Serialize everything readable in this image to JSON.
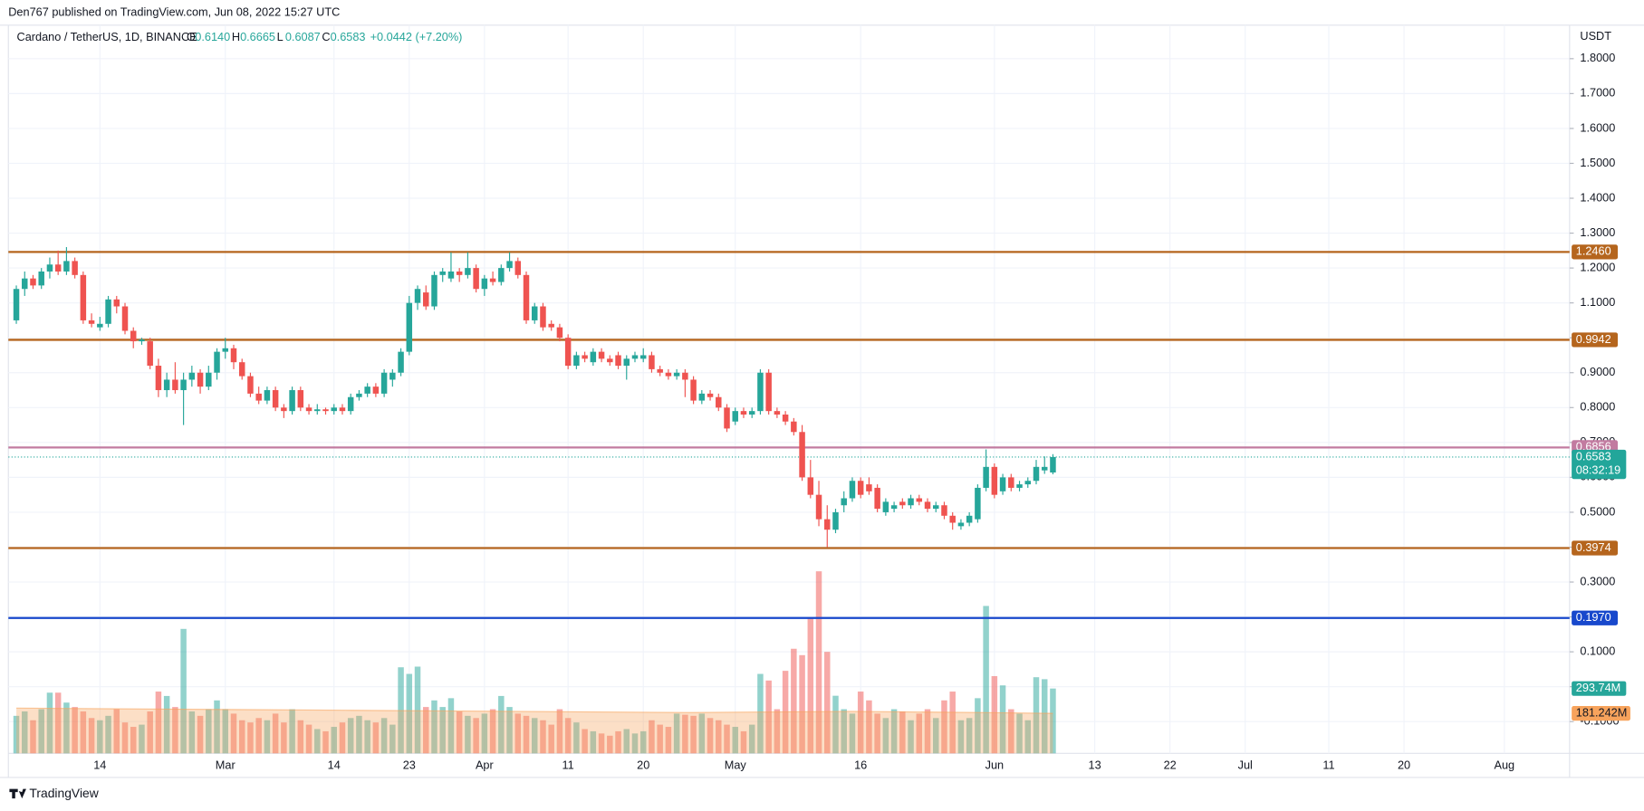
{
  "chart_data": {
    "type": "candlestick",
    "publisher": "Den767 published on TradingView.com, Jun 08, 2022 15:27 UTC",
    "title": "Cardano / TetherUS, 1D, BINANCE",
    "ohlc": [
      {
        "key": "O",
        "value": 0.614,
        "label": "0.6140"
      },
      {
        "key": "H",
        "value": 0.6665,
        "label": "0.6665"
      },
      {
        "key": "L",
        "value": 0.6087,
        "label": "0.6087"
      },
      {
        "key": "C",
        "value": 0.6583,
        "label": "0.6583"
      }
    ],
    "change_label": "+0.0442 (+7.20%)",
    "axis_unit": "USDT",
    "footer": "TradingView",
    "up_color": "#26a69a",
    "down_color": "#ef5350",
    "xlim": [
      -0.95,
      185.8
    ],
    "xticks": [
      {
        "value": 10,
        "label": "14"
      },
      {
        "value": 25,
        "label": "Mar"
      },
      {
        "value": 38,
        "label": "14"
      },
      {
        "value": 47,
        "label": "23"
      },
      {
        "value": 56,
        "label": "Apr"
      },
      {
        "value": 66,
        "label": "11"
      },
      {
        "value": 75,
        "label": "20"
      },
      {
        "value": 86,
        "label": "May"
      },
      {
        "value": 101,
        "label": "16"
      },
      {
        "value": 117,
        "label": "Jun"
      },
      {
        "value": 129,
        "label": "13"
      },
      {
        "value": 138,
        "label": "22"
      },
      {
        "value": 147,
        "label": "Jul"
      },
      {
        "value": 157,
        "label": "11"
      },
      {
        "value": 166,
        "label": "20"
      },
      {
        "value": 178,
        "label": "Aug"
      }
    ],
    "ylim": [
      -0.191,
      1.896
    ],
    "yticks": [
      {
        "value": 1.8,
        "label": "1.8000"
      },
      {
        "value": 1.7,
        "label": "1.7000"
      },
      {
        "value": 1.6,
        "label": "1.6000"
      },
      {
        "value": 1.5,
        "label": "1.5000"
      },
      {
        "value": 1.4,
        "label": "1.4000"
      },
      {
        "value": 1.3,
        "label": "1.3000"
      },
      {
        "value": 1.2,
        "label": "1.2000"
      },
      {
        "value": 1.1,
        "label": "1.1000"
      },
      {
        "value": 1.0,
        "label": "1.0000"
      },
      {
        "value": 0.9,
        "label": "0.9000"
      },
      {
        "value": 0.8,
        "label": "0.8000"
      },
      {
        "value": 0.7,
        "label": "0.7000"
      },
      {
        "value": 0.6,
        "label": "0.6000"
      },
      {
        "value": 0.5,
        "label": "0.5000"
      },
      {
        "value": 0.4,
        "label": "0.4000"
      },
      {
        "value": 0.3,
        "label": "0.3000"
      },
      {
        "value": 0.2,
        "label": "0.2000"
      },
      {
        "value": 0.1,
        "label": "0.1000"
      },
      {
        "value": 0,
        "label": "0.0000"
      },
      {
        "value": -0.1,
        "label": "-0.1000"
      }
    ],
    "grid": true,
    "candles": [
      [
        1.05,
        1.15,
        1.04,
        1.14
      ],
      [
        1.14,
        1.19,
        1.12,
        1.17
      ],
      [
        1.17,
        1.18,
        1.14,
        1.15
      ],
      [
        1.15,
        1.2,
        1.14,
        1.19
      ],
      [
        1.19,
        1.23,
        1.17,
        1.21
      ],
      [
        1.21,
        1.25,
        1.18,
        1.19
      ],
      [
        1.19,
        1.26,
        1.18,
        1.22
      ],
      [
        1.22,
        1.23,
        1.17,
        1.18
      ],
      [
        1.18,
        1.19,
        1.04,
        1.05
      ],
      [
        1.05,
        1.07,
        1.03,
        1.04
      ],
      [
        1.03,
        1.06,
        1.02,
        1.04
      ],
      [
        1.04,
        1.12,
        1.03,
        1.11
      ],
      [
        1.11,
        1.12,
        1.07,
        1.09
      ],
      [
        1.09,
        1.1,
        1.01,
        1.02
      ],
      [
        1.02,
        1.03,
        0.97,
        0.99
      ],
      [
        0.99,
        1.0,
        0.98,
        0.995
      ],
      [
        0.99,
        1.0,
        0.91,
        0.92
      ],
      [
        0.92,
        0.94,
        0.83,
        0.85
      ],
      [
        0.85,
        0.9,
        0.83,
        0.88
      ],
      [
        0.88,
        0.93,
        0.84,
        0.85
      ],
      [
        0.85,
        0.9,
        0.75,
        0.88
      ],
      [
        0.88,
        0.92,
        0.86,
        0.9
      ],
      [
        0.9,
        0.91,
        0.84,
        0.86
      ],
      [
        0.86,
        0.92,
        0.85,
        0.9
      ],
      [
        0.9,
        0.97,
        0.88,
        0.96
      ],
      [
        0.96,
        1.0,
        0.94,
        0.97
      ],
      [
        0.97,
        0.98,
        0.91,
        0.93
      ],
      [
        0.93,
        0.94,
        0.88,
        0.89
      ],
      [
        0.89,
        0.9,
        0.83,
        0.84
      ],
      [
        0.84,
        0.86,
        0.81,
        0.82
      ],
      [
        0.82,
        0.86,
        0.81,
        0.85
      ],
      [
        0.85,
        0.86,
        0.79,
        0.8
      ],
      [
        0.8,
        0.81,
        0.77,
        0.79
      ],
      [
        0.79,
        0.86,
        0.78,
        0.85
      ],
      [
        0.85,
        0.86,
        0.79,
        0.8
      ],
      [
        0.8,
        0.81,
        0.78,
        0.79
      ],
      [
        0.79,
        0.81,
        0.78,
        0.795
      ],
      [
        0.795,
        0.8,
        0.78,
        0.79
      ],
      [
        0.79,
        0.81,
        0.78,
        0.8
      ],
      [
        0.8,
        0.81,
        0.78,
        0.79
      ],
      [
        0.79,
        0.84,
        0.78,
        0.83
      ],
      [
        0.83,
        0.85,
        0.82,
        0.84
      ],
      [
        0.84,
        0.87,
        0.83,
        0.86
      ],
      [
        0.86,
        0.87,
        0.83,
        0.84
      ],
      [
        0.84,
        0.91,
        0.83,
        0.9
      ],
      [
        0.88,
        0.91,
        0.86,
        0.9
      ],
      [
        0.9,
        0.97,
        0.89,
        0.96
      ],
      [
        0.96,
        1.12,
        0.95,
        1.1
      ],
      [
        1.1,
        1.15,
        1.08,
        1.14
      ],
      [
        1.13,
        1.15,
        1.08,
        1.09
      ],
      [
        1.09,
        1.19,
        1.08,
        1.18
      ],
      [
        1.18,
        1.2,
        1.16,
        1.19
      ],
      [
        1.17,
        1.245,
        1.16,
        1.19
      ],
      [
        1.19,
        1.2,
        1.16,
        1.18
      ],
      [
        1.18,
        1.245,
        1.17,
        1.2
      ],
      [
        1.2,
        1.21,
        1.13,
        1.14
      ],
      [
        1.14,
        1.18,
        1.12,
        1.17
      ],
      [
        1.17,
        1.19,
        1.15,
        1.16
      ],
      [
        1.16,
        1.21,
        1.15,
        1.2
      ],
      [
        1.2,
        1.245,
        1.19,
        1.22
      ],
      [
        1.22,
        1.23,
        1.17,
        1.18
      ],
      [
        1.18,
        1.19,
        1.04,
        1.05
      ],
      [
        1.05,
        1.1,
        1.04,
        1.09
      ],
      [
        1.09,
        1.1,
        1.02,
        1.03
      ],
      [
        1.04,
        1.05,
        1.02,
        1.03
      ],
      [
        1.03,
        1.04,
        0.99,
        1.0
      ],
      [
        1.0,
        1.01,
        0.91,
        0.92
      ],
      [
        0.92,
        0.96,
        0.91,
        0.95
      ],
      [
        0.95,
        0.96,
        0.93,
        0.94
      ],
      [
        0.93,
        0.97,
        0.92,
        0.96
      ],
      [
        0.96,
        0.97,
        0.93,
        0.94
      ],
      [
        0.94,
        0.95,
        0.92,
        0.93
      ],
      [
        0.95,
        0.96,
        0.91,
        0.92
      ],
      [
        0.92,
        0.95,
        0.88,
        0.94
      ],
      [
        0.94,
        0.96,
        0.93,
        0.95
      ],
      [
        0.94,
        0.97,
        0.93,
        0.95
      ],
      [
        0.95,
        0.96,
        0.9,
        0.91
      ],
      [
        0.91,
        0.92,
        0.89,
        0.9
      ],
      [
        0.9,
        0.91,
        0.88,
        0.89
      ],
      [
        0.89,
        0.91,
        0.88,
        0.9
      ],
      [
        0.9,
        0.91,
        0.83,
        0.88
      ],
      [
        0.88,
        0.89,
        0.81,
        0.82
      ],
      [
        0.82,
        0.85,
        0.81,
        0.84
      ],
      [
        0.84,
        0.85,
        0.82,
        0.83
      ],
      [
        0.83,
        0.84,
        0.79,
        0.8
      ],
      [
        0.8,
        0.81,
        0.73,
        0.74
      ],
      [
        0.76,
        0.8,
        0.75,
        0.79
      ],
      [
        0.79,
        0.8,
        0.77,
        0.78
      ],
      [
        0.78,
        0.8,
        0.77,
        0.79
      ],
      [
        0.79,
        0.91,
        0.78,
        0.9
      ],
      [
        0.9,
        0.91,
        0.78,
        0.79
      ],
      [
        0.79,
        0.8,
        0.77,
        0.78
      ],
      [
        0.78,
        0.79,
        0.75,
        0.76
      ],
      [
        0.76,
        0.77,
        0.72,
        0.73
      ],
      [
        0.73,
        0.75,
        0.59,
        0.6
      ],
      [
        0.6,
        0.65,
        0.54,
        0.55
      ],
      [
        0.55,
        0.59,
        0.46,
        0.48
      ],
      [
        0.48,
        0.52,
        0.4,
        0.45
      ],
      [
        0.45,
        0.51,
        0.44,
        0.5
      ],
      [
        0.52,
        0.56,
        0.5,
        0.54
      ],
      [
        0.54,
        0.6,
        0.53,
        0.59
      ],
      [
        0.59,
        0.6,
        0.54,
        0.55
      ],
      [
        0.58,
        0.6,
        0.55,
        0.56
      ],
      [
        0.57,
        0.58,
        0.5,
        0.51
      ],
      [
        0.5,
        0.54,
        0.49,
        0.53
      ],
      [
        0.51,
        0.53,
        0.5,
        0.52
      ],
      [
        0.53,
        0.54,
        0.51,
        0.52
      ],
      [
        0.52,
        0.55,
        0.51,
        0.54
      ],
      [
        0.54,
        0.55,
        0.52,
        0.53
      ],
      [
        0.53,
        0.54,
        0.5,
        0.51
      ],
      [
        0.51,
        0.53,
        0.5,
        0.52
      ],
      [
        0.52,
        0.53,
        0.48,
        0.49
      ],
      [
        0.49,
        0.5,
        0.45,
        0.47
      ],
      [
        0.46,
        0.48,
        0.45,
        0.47
      ],
      [
        0.47,
        0.5,
        0.46,
        0.49
      ],
      [
        0.48,
        0.58,
        0.47,
        0.57
      ],
      [
        0.57,
        0.68,
        0.56,
        0.63
      ],
      [
        0.63,
        0.64,
        0.54,
        0.55
      ],
      [
        0.56,
        0.61,
        0.55,
        0.6
      ],
      [
        0.6,
        0.61,
        0.56,
        0.57
      ],
      [
        0.57,
        0.59,
        0.56,
        0.58
      ],
      [
        0.58,
        0.6,
        0.57,
        0.59
      ],
      [
        0.59,
        0.65,
        0.58,
        0.63
      ],
      [
        0.62,
        0.66,
        0.61,
        0.63
      ],
      [
        0.614,
        0.6665,
        0.6087,
        0.6583
      ]
    ],
    "volume": [
      170,
      190,
      150,
      200,
      275,
      275,
      230,
      210,
      190,
      160,
      150,
      170,
      200,
      140,
      120,
      130,
      190,
      280,
      260,
      210,
      564,
      190,
      170,
      200,
      240,
      200,
      180,
      150,
      140,
      160,
      150,
      180,
      140,
      200,
      150,
      130,
      110,
      100,
      120,
      140,
      160,
      170,
      150,
      140,
      160,
      130,
      390,
      360,
      393,
      210,
      240,
      210,
      250,
      190,
      170,
      160,
      180,
      200,
      260,
      210,
      180,
      170,
      160,
      150,
      130,
      200,
      160,
      140,
      110,
      100,
      90,
      80,
      100,
      110,
      90,
      100,
      150,
      130,
      120,
      180,
      175,
      170,
      180,
      160,
      150,
      130,
      120,
      100,
      130,
      360,
      330,
      200,
      374,
      474,
      445,
      616,
      825,
      460,
      261,
      200,
      180,
      280,
      240,
      180,
      160,
      200,
      190,
      150,
      180,
      200,
      160,
      240,
      280,
      150,
      160,
      250,
      668,
      350,
      308,
      200,
      180,
      150,
      345,
      336,
      293.74
    ],
    "volume_label": "293.74M",
    "vlim": [
      0,
      3300
    ],
    "ma_x": [
      0,
      20,
      40,
      60,
      80,
      100,
      115,
      124
    ],
    "ma": [
      205,
      200,
      195,
      190,
      185,
      190,
      185,
      181.242
    ],
    "ma_label": "181.242M",
    "ma_color": "#f7a35c",
    "levels": [
      {
        "value": 1.246,
        "label": "1.2460",
        "color": "#b5651d"
      },
      {
        "value": 0.9942,
        "label": "0.9942",
        "color": "#b5651d"
      },
      {
        "value": 0.6856,
        "label": "0.6856",
        "color": "#c27ba0"
      },
      {
        "value": 0.3974,
        "label": "0.3974",
        "color": "#b5651d"
      },
      {
        "value": 0.197,
        "label": "0.1970",
        "color": "#1848cc"
      }
    ],
    "price_label": {
      "value": 0.6583,
      "label": "0.6583",
      "countdown": "08:32:19",
      "color": "#22a69a"
    }
  }
}
